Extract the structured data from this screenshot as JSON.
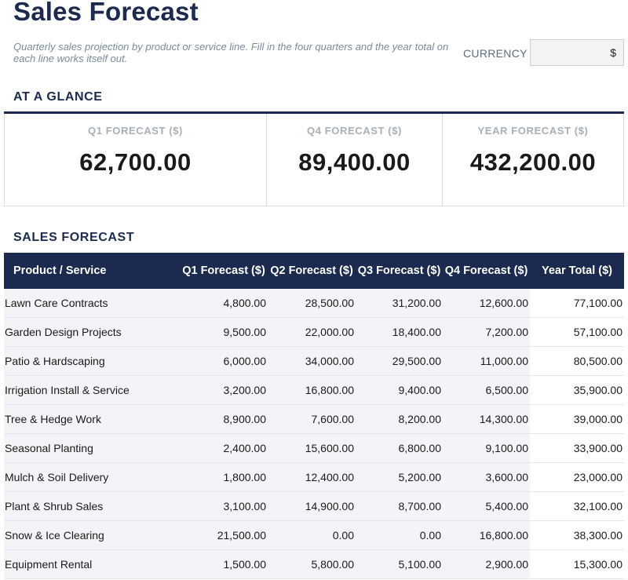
{
  "header": {
    "title": "Sales Forecast",
    "subtitle": "Quarterly sales projection by product or service line. Fill in the four quarters and the year total on each line works itself out.",
    "currency_label": "CURRENCY",
    "currency_value": "$"
  },
  "glance": {
    "heading": "AT A GLANCE",
    "cards": [
      {
        "label": "Q1 FORECAST ($)",
        "value": "62,700.00"
      },
      {
        "label": "Q4 FORECAST ($)",
        "value": "89,400.00"
      },
      {
        "label": "YEAR FORECAST ($)",
        "value": "432,200.00"
      }
    ]
  },
  "forecast": {
    "heading": "SALES FORECAST",
    "columns": {
      "name": "Product / Service",
      "q1": "Q1 Forecast ($)",
      "q2": "Q2 Forecast ($)",
      "q3": "Q3 Forecast ($)",
      "q4": "Q4 Forecast ($)",
      "total": "Year Total ($)"
    },
    "rows": [
      {
        "name": "Lawn Care Contracts",
        "q1": "4,800.00",
        "q2": "28,500.00",
        "q3": "31,200.00",
        "q4": "12,600.00",
        "total": "77,100.00"
      },
      {
        "name": "Garden Design Projects",
        "q1": "9,500.00",
        "q2": "22,000.00",
        "q3": "18,400.00",
        "q4": "7,200.00",
        "total": "57,100.00"
      },
      {
        "name": "Patio & Hardscaping",
        "q1": "6,000.00",
        "q2": "34,000.00",
        "q3": "29,500.00",
        "q4": "11,000.00",
        "total": "80,500.00"
      },
      {
        "name": "Irrigation Install & Service",
        "q1": "3,200.00",
        "q2": "16,800.00",
        "q3": "9,400.00",
        "q4": "6,500.00",
        "total": "35,900.00"
      },
      {
        "name": "Tree & Hedge Work",
        "q1": "8,900.00",
        "q2": "7,600.00",
        "q3": "8,200.00",
        "q4": "14,300.00",
        "total": "39,000.00"
      },
      {
        "name": "Seasonal Planting",
        "q1": "2,400.00",
        "q2": "15,600.00",
        "q3": "6,800.00",
        "q4": "9,100.00",
        "total": "33,900.00"
      },
      {
        "name": "Mulch & Soil Delivery",
        "q1": "1,800.00",
        "q2": "12,400.00",
        "q3": "5,200.00",
        "q4": "3,600.00",
        "total": "23,000.00"
      },
      {
        "name": "Plant & Shrub Sales",
        "q1": "3,100.00",
        "q2": "14,900.00",
        "q3": "8,700.00",
        "q4": "5,400.00",
        "total": "32,100.00"
      },
      {
        "name": "Snow & Ice Clearing",
        "q1": "21,500.00",
        "q2": "0.00",
        "q3": "0.00",
        "q4": "16,800.00",
        "total": "38,300.00"
      },
      {
        "name": "Equipment Rental",
        "q1": "1,500.00",
        "q2": "5,800.00",
        "q3": "5,100.00",
        "q4": "2,900.00",
        "total": "15,300.00"
      }
    ]
  }
}
